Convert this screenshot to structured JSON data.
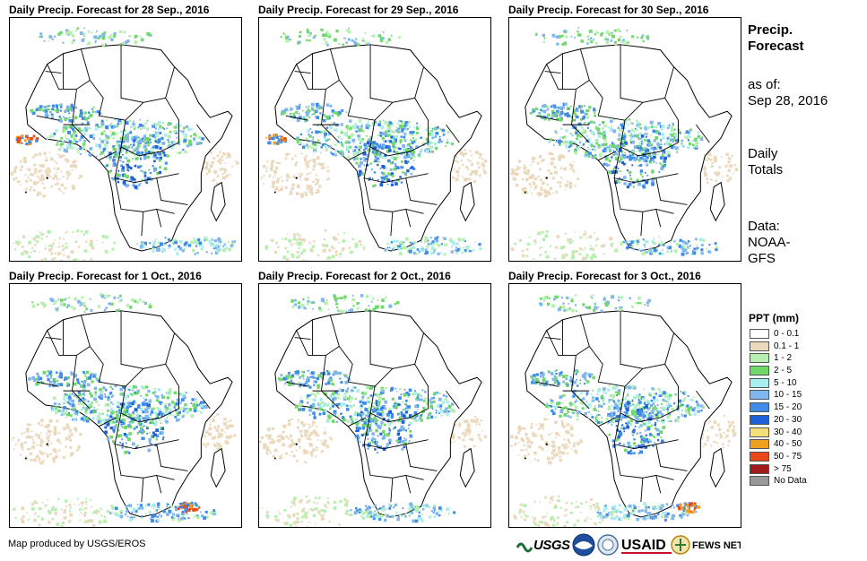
{
  "panels": [
    {
      "title": "Daily Precip. Forecast for 28  Sep., 2016",
      "variant": 0
    },
    {
      "title": "Daily Precip. Forecast for 29  Sep., 2016",
      "variant": 1
    },
    {
      "title": "Daily Precip. Forecast for 30  Sep., 2016",
      "variant": 2
    },
    {
      "title": "Daily Precip. Forecast for 1 Oct., 2016",
      "variant": 3
    },
    {
      "title": "Daily Precip. Forecast for 2 Oct., 2016",
      "variant": 4
    },
    {
      "title": "Daily Precip. Forecast for 3 Oct., 2016",
      "variant": 5
    }
  ],
  "sidebar": {
    "title_line1": "Precip.",
    "title_line2": "Forecast",
    "asof_label": "as of:",
    "asof_date": "Sep 28, 2016",
    "totals_line1": "Daily",
    "totals_line2": "Totals",
    "data_line1": "Data:",
    "data_line2": "NOAA-",
    "data_line3": "GFS"
  },
  "legend": {
    "title": "PPT (mm)",
    "items": [
      {
        "label": "0 - 0.1",
        "color": "#ffffff"
      },
      {
        "label": "0.1 - 1",
        "color": "#ead9bd"
      },
      {
        "label": "1 - 2",
        "color": "#b6f0ae"
      },
      {
        "label": "2 - 5",
        "color": "#6fd86a"
      },
      {
        "label": "5 - 10",
        "color": "#a8eef0"
      },
      {
        "label": "10 - 15",
        "color": "#7fb6ee"
      },
      {
        "label": "15 - 20",
        "color": "#3f8ce8"
      },
      {
        "label": "20 - 30",
        "color": "#1e5fd8"
      },
      {
        "label": "30 - 40",
        "color": "#f5df7a"
      },
      {
        "label": "40 - 50",
        "color": "#f0a020"
      },
      {
        "label": "50 - 75",
        "color": "#e8481a"
      },
      {
        "label": "> 75",
        "color": "#a01c1c"
      },
      {
        "label": "No Data",
        "color": "#999999"
      }
    ]
  },
  "credit": "Map produced by USGS/EROS",
  "logos": {
    "usgs": "USGS",
    "usaid": "USAID",
    "fews": "FEWS NET"
  }
}
